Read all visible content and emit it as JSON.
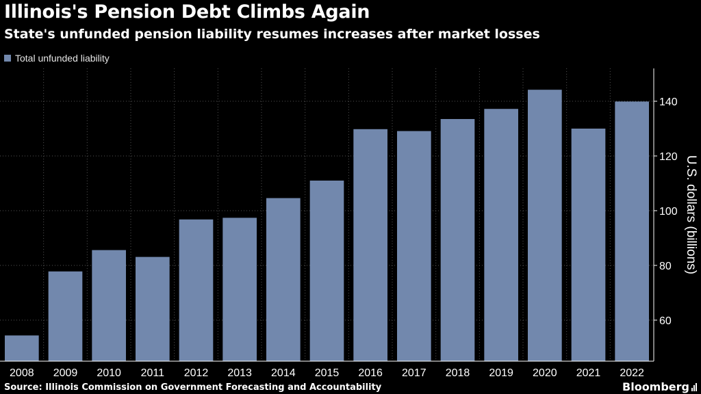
{
  "header": {
    "title": "Illinois's Pension Debt Climbs Again",
    "subtitle": "State's unfunded pension liability resumes increases after market losses"
  },
  "legend": {
    "label": "Total unfunded liability"
  },
  "footer": {
    "source": "Source: Illinois Commission on Government Forecasting and Accountability",
    "brand": "Bloomberg",
    "brand_icon": "bloomberg-bars-icon"
  },
  "colors": {
    "background": "#000000",
    "bar": "#7288ad",
    "text": "#ffffff",
    "grid": "#555555"
  },
  "chart_data": {
    "type": "bar",
    "title": "Illinois's Pension Debt Climbs Again",
    "subtitle": "State's unfunded pension liability resumes increases after market losses",
    "categories": [
      "2008",
      "2009",
      "2010",
      "2011",
      "2012",
      "2013",
      "2014",
      "2015",
      "2016",
      "2017",
      "2018",
      "2019",
      "2020",
      "2021",
      "2022"
    ],
    "series": [
      {
        "name": "Total unfunded liability",
        "values": [
          54.4,
          77.8,
          85.6,
          83.1,
          96.8,
          97.4,
          104.6,
          111.0,
          129.8,
          129.1,
          133.5,
          137.2,
          144.2,
          130.0,
          139.9
        ]
      }
    ],
    "xlabel": "",
    "ylabel": "U.S. dollars (billions)",
    "ylim": [
      45,
      152
    ],
    "yticks": [
      60,
      80,
      100,
      120,
      140
    ],
    "y_axis_side": "right",
    "grid": true,
    "grid_style": "dotted",
    "legend_position": "top-left"
  }
}
